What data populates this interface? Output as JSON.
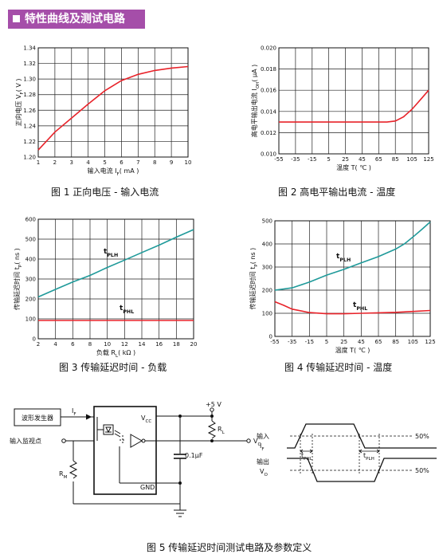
{
  "section_title": "特性曲线及测试电路",
  "captions": {
    "fig1": "图 1 正向电压 - 输入电流",
    "fig2": "图 2 高电平输出电流 - 温度",
    "fig3": "图 3 传输延迟时间 - 负载",
    "fig4": "图 4 传输延迟时间 - 温度",
    "fig5": "图 5 传输延迟时间测试电路及参数定义"
  },
  "chart_data": [
    {
      "type": "line",
      "xlabel": "输入电流 I_F( mA )",
      "ylabel": "正向电压 V_F( V )",
      "xlim": [
        1,
        10
      ],
      "ylim": [
        1.2,
        1.34
      ],
      "xticks": [
        1,
        2,
        3,
        4,
        5,
        6,
        7,
        8,
        9,
        10
      ],
      "yticks": [
        1.2,
        1.22,
        1.24,
        1.26,
        1.28,
        1.3,
        1.32,
        1.34
      ],
      "grid": true,
      "series": [
        {
          "color": "#e8232a",
          "x": [
            1,
            2,
            3,
            4,
            5,
            6,
            7,
            8,
            9,
            10
          ],
          "y": [
            1.209,
            1.232,
            1.25,
            1.268,
            1.285,
            1.298,
            1.306,
            1.311,
            1.314,
            1.316
          ]
        }
      ]
    },
    {
      "type": "line",
      "xlabel": "温度 T( ℃ )",
      "ylabel": "高电平输出电流 I_OH( μA )",
      "xlim": [
        -55,
        125
      ],
      "ylim": [
        0.01,
        0.02
      ],
      "xticks": [
        -55,
        -35,
        -15,
        5,
        25,
        45,
        65,
        85,
        105,
        125
      ],
      "yticks": [
        0.01,
        0.012,
        0.014,
        0.016,
        0.018,
        0.02
      ],
      "grid": true,
      "series": [
        {
          "color": "#e8232a",
          "x": [
            -55,
            -35,
            -15,
            5,
            25,
            45,
            65,
            75,
            85,
            95,
            105,
            115,
            125
          ],
          "y": [
            0.013,
            0.013,
            0.013,
            0.013,
            0.013,
            0.013,
            0.013,
            0.013,
            0.0131,
            0.0135,
            0.0142,
            0.0151,
            0.016
          ]
        }
      ]
    },
    {
      "type": "line",
      "xlabel": "负载 R_L( kΩ )",
      "ylabel": "传输延迟时间 t_P( ns )",
      "xlim": [
        2,
        20
      ],
      "ylim": [
        0,
        600
      ],
      "xticks": [
        2,
        4,
        6,
        8,
        10,
        12,
        14,
        16,
        18,
        20
      ],
      "yticks": [
        0,
        100,
        200,
        300,
        400,
        500,
        600
      ],
      "grid": true,
      "series": [
        {
          "name": "t_PLH",
          "color": "#1f9a9a",
          "x": [
            2,
            4,
            6,
            8,
            10,
            12,
            14,
            16,
            18,
            20
          ],
          "y": [
            210,
            248,
            285,
            318,
            358,
            395,
            433,
            470,
            510,
            548
          ]
        },
        {
          "name": "t_PHL",
          "color": "#e8232a",
          "x": [
            2,
            20
          ],
          "y": [
            92,
            92
          ]
        }
      ]
    },
    {
      "type": "line",
      "xlabel": "温度 T( ℃ )",
      "ylabel": "传输延迟时间 t_P( ns )",
      "xlim": [
        -55,
        125
      ],
      "ylim": [
        0,
        500
      ],
      "xticks": [
        -55,
        -35,
        -15,
        5,
        25,
        45,
        65,
        85,
        105,
        125
      ],
      "yticks": [
        0,
        100,
        200,
        300,
        400,
        500
      ],
      "grid": true,
      "series": [
        {
          "name": "t_PLH",
          "color": "#1f9a9a",
          "x": [
            -55,
            -35,
            -15,
            5,
            25,
            45,
            65,
            85,
            95,
            105,
            115,
            125
          ],
          "y": [
            200,
            210,
            235,
            265,
            290,
            318,
            345,
            378,
            400,
            430,
            462,
            495
          ]
        },
        {
          "name": "t_PHL",
          "color": "#e8232a",
          "x": [
            -55,
            -45,
            -35,
            -15,
            5,
            25,
            45,
            65,
            85,
            105,
            125
          ],
          "y": [
            150,
            135,
            118,
            103,
            98,
            98,
            100,
            102,
            104,
            108,
            112
          ]
        }
      ]
    }
  ],
  "circuit": {
    "generator": "波形发生器",
    "monitor": "输入监视点",
    "if": "I_F",
    "vcc": "V_CC",
    "gnd": "GND",
    "supply": "+5 V",
    "rl": "R_L",
    "rm": "R_M",
    "cap": "0.1μF",
    "vo": "V_O"
  },
  "timing": {
    "input_label": "输入",
    "input_sub": "I_F",
    "output_label": "输出",
    "output_sub": "V_O",
    "pct_top": "50%",
    "pct_bottom": "50%",
    "tphl": "t_PHL",
    "tplh": "t_PLH"
  }
}
